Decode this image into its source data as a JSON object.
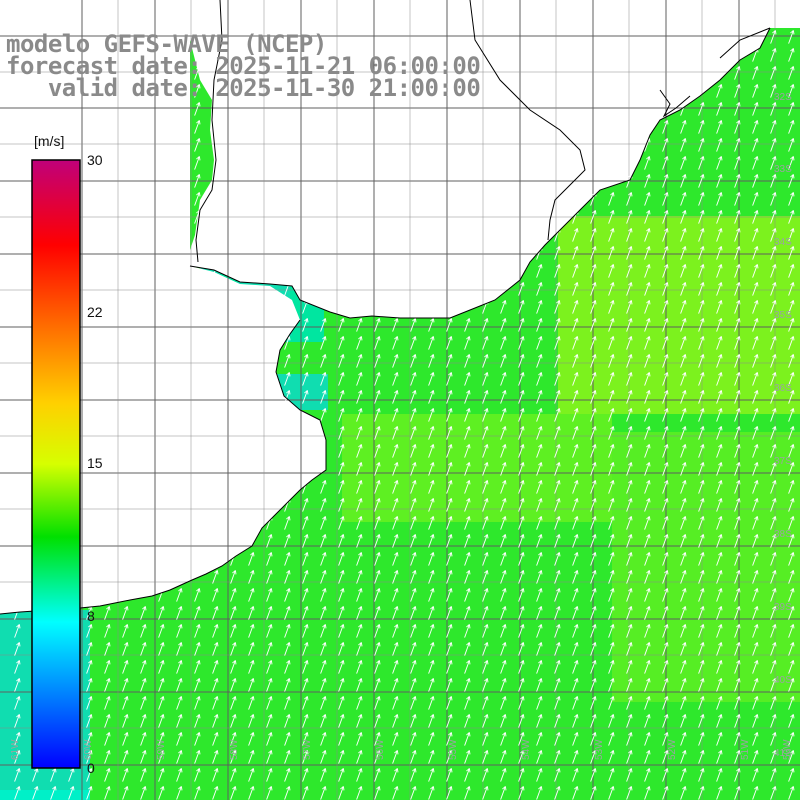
{
  "title": {
    "line1": "modelo GEFS-WAVE (NCEP)",
    "line2": "forecast date: 2025-11-21 06:00:00",
    "line3": "   valid date: 2025-11-30 21:00:00"
  },
  "colorbar": {
    "unit": "[m/s]",
    "min": 0,
    "max": 30,
    "tick_labels": [
      "30",
      "22",
      "15",
      "8",
      "0"
    ],
    "tick_values": [
      30,
      22,
      15,
      8,
      0
    ],
    "palette": [
      "#ff00ff",
      "#c0006a",
      "#ff0000",
      "#ff6000",
      "#ffa000",
      "#ffff00",
      "#80ff00",
      "#00e000",
      "#00ffc0",
      "#00ffff",
      "#00a0ff",
      "#0040ff",
      "#0000ff"
    ]
  },
  "grid": {
    "lat_labels": [
      "32S",
      "33S",
      "34S",
      "35S",
      "36S",
      "37S",
      "38S",
      "39S",
      "40S",
      "41S"
    ],
    "lon_labels": [
      "61W",
      "60W",
      "59W",
      "58W",
      "57W",
      "56W",
      "55W",
      "54W",
      "53W",
      "52W",
      "51W",
      "50W"
    ]
  },
  "colors": {
    "land": "#ffffff",
    "grid_line": "#666666",
    "coast": "#000000",
    "arrow": "#ffffff"
  },
  "map": {
    "field": "wind speed with direction arrows",
    "prevailing_direction": "toward NNE"
  }
}
